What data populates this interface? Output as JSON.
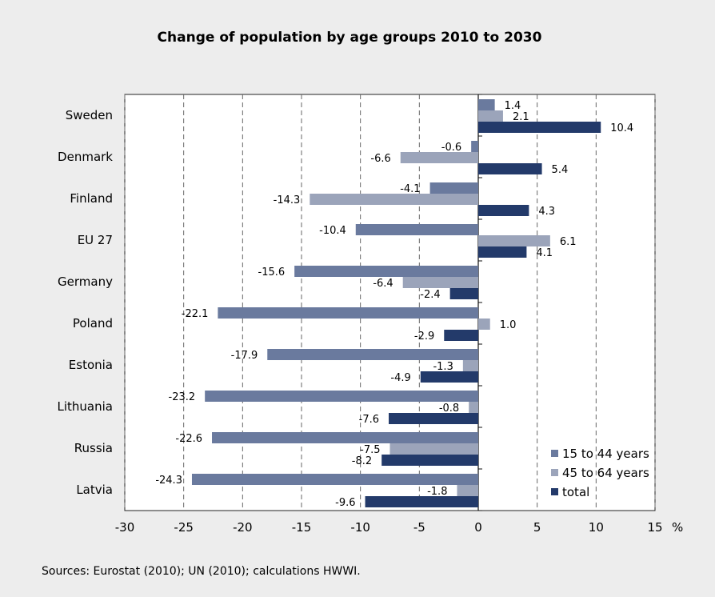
{
  "chart_data": {
    "type": "bar",
    "orientation": "horizontal",
    "title": "Change of population by age groups 2010 to 2030",
    "categories": [
      "Sweden",
      "Denmark",
      "Finland",
      "EU 27",
      "Germany",
      "Poland",
      "Estonia",
      "Lithuania",
      "Russia",
      "Latvia"
    ],
    "series": [
      {
        "name": "15 to 44 years",
        "color": "#6a7a9e",
        "values": [
          1.4,
          -0.6,
          -4.1,
          -10.4,
          -15.6,
          -22.1,
          -17.9,
          -23.2,
          -22.6,
          -24.3
        ]
      },
      {
        "name": "45 to 64 years",
        "color": "#9ba4ba",
        "values": [
          2.1,
          -6.6,
          -14.3,
          6.1,
          -6.4,
          1.0,
          -1.3,
          -0.8,
          -7.5,
          -1.8
        ]
      },
      {
        "name": "total",
        "color": "#233a6a",
        "values": [
          10.4,
          5.4,
          4.3,
          4.1,
          -2.4,
          -2.9,
          -4.9,
          -7.6,
          -8.2,
          -9.6
        ]
      }
    ],
    "x_ticks": [
      "-30",
      "-25",
      "-20",
      "-15",
      "-10",
      "-5",
      "0",
      "5",
      "10",
      "15"
    ],
    "xlim": [
      -30,
      15
    ],
    "x_unit": "%",
    "grid": "vertical dashed",
    "legend_position": "bottom-right"
  },
  "source": "Sources: Eurostat (2010); UN (2010); calculations HWWI."
}
